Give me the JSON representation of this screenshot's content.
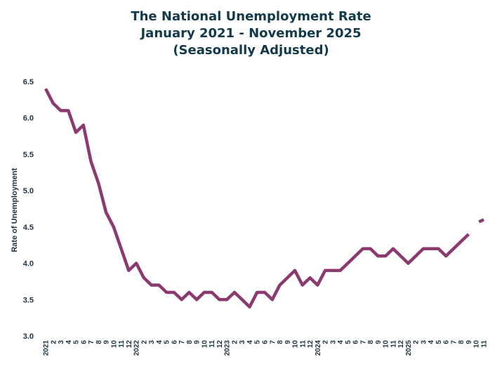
{
  "chart_data": {
    "type": "line",
    "title_lines": [
      "The National Unemployment Rate",
      "January 2021 - November 2025",
      "(Seasonally Adjusted)"
    ],
    "ylabel": "Rate of Unemployment",
    "xlabel": "",
    "ylim": [
      3.0,
      6.5
    ],
    "yticks": [
      "3.0",
      "3.5",
      "4.0",
      "4.5",
      "5.0",
      "5.5",
      "6.0",
      "6.5"
    ],
    "grid": false,
    "legend": "none",
    "line_color": "#8a3a6e",
    "x": [
      "2021",
      "2",
      "3",
      "4",
      "5",
      "6",
      "7",
      "8",
      "9",
      "10",
      "11",
      "12",
      "2022",
      "2",
      "3",
      "4",
      "5",
      "6",
      "7",
      "8",
      "9",
      "10",
      "11",
      "12",
      "2023",
      "2",
      "3",
      "4",
      "5",
      "6",
      "7",
      "8",
      "9",
      "10",
      "11",
      "12",
      "2024",
      "2",
      "3",
      "4",
      "5",
      "6",
      "7",
      "8",
      "9",
      "10",
      "11",
      "12",
      "2025",
      "2",
      "3",
      "4",
      "5",
      "6",
      "7",
      "8",
      "9",
      "10",
      "11"
    ],
    "series": [
      {
        "values": [
          6.4,
          6.2,
          6.1,
          6.1,
          5.8,
          5.9,
          5.4,
          5.1,
          4.7,
          4.5,
          4.2,
          3.9,
          4.0,
          3.8,
          3.7,
          3.7,
          3.6,
          3.6,
          3.5,
          3.6,
          3.5,
          3.6,
          3.6,
          3.5,
          3.5,
          3.6,
          3.5,
          3.4,
          3.6,
          3.6,
          3.5,
          3.7,
          3.8,
          3.9,
          3.7,
          3.8,
          3.7,
          3.9,
          3.9,
          3.9,
          4.0,
          4.1,
          4.2,
          4.2,
          4.1,
          4.1,
          4.2,
          4.1,
          4.0,
          4.1,
          4.2,
          4.2,
          4.2,
          4.1,
          4.2,
          4.3,
          4.4,
          null,
          4.6
        ]
      }
    ]
  }
}
